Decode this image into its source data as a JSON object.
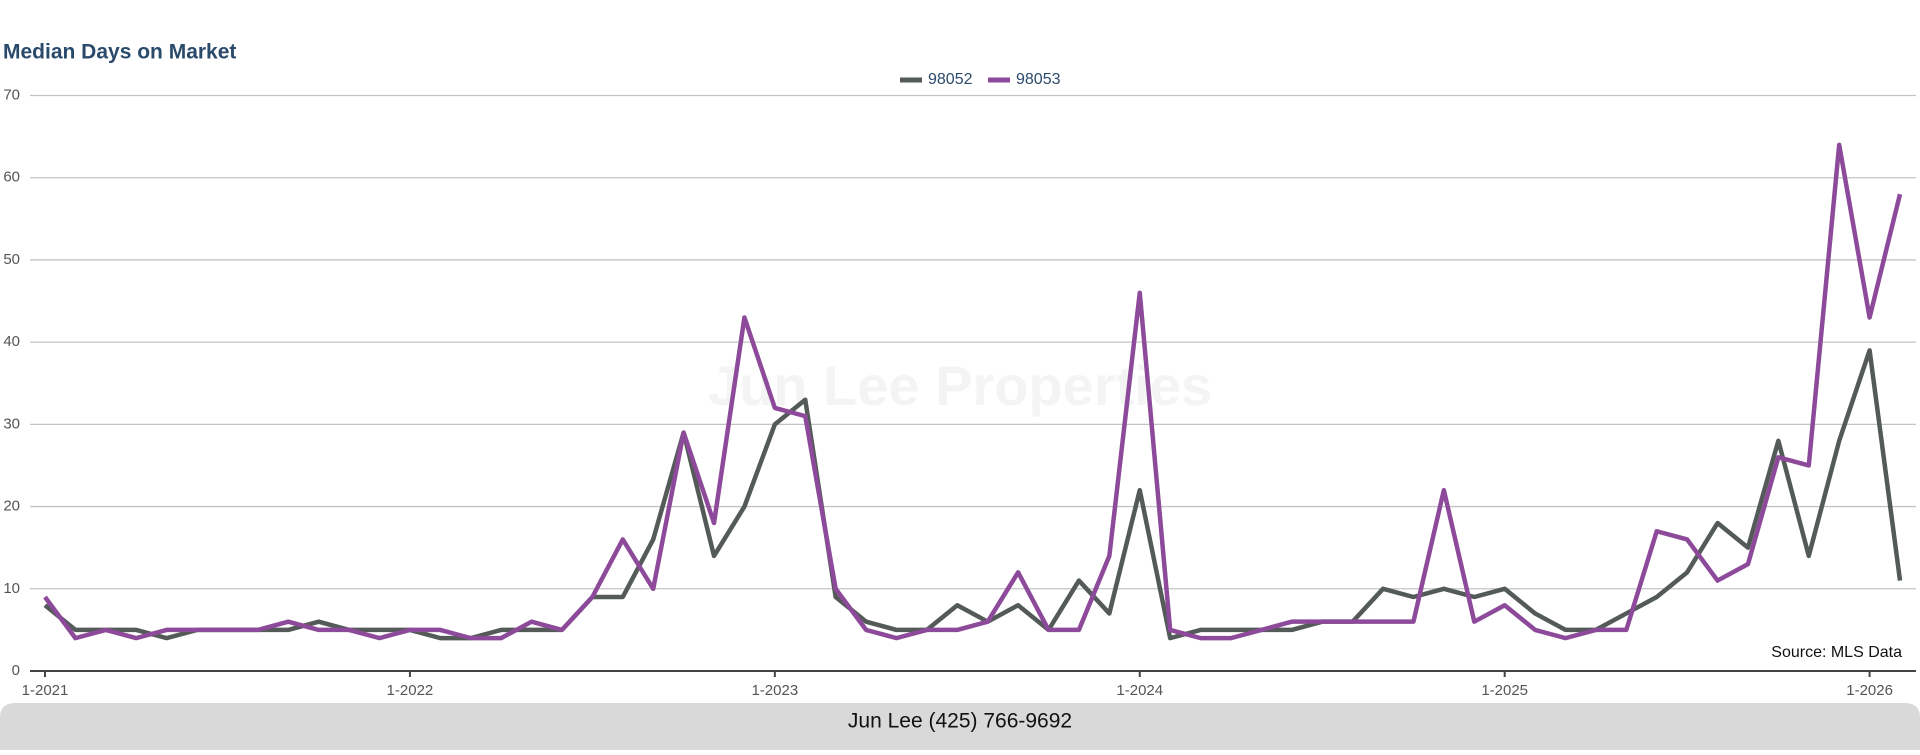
{
  "chart_data": {
    "type": "line",
    "title": "Median Days on Market",
    "categories": [
      "1-2021",
      null,
      null,
      null,
      null,
      null,
      null,
      null,
      null,
      null,
      null,
      null,
      "1-2022",
      null,
      null,
      null,
      null,
      null,
      null,
      null,
      null,
      null,
      null,
      null,
      "1-2023",
      null,
      null,
      null,
      null,
      null,
      null,
      null,
      null,
      null,
      null,
      null,
      "1-2024",
      null,
      null,
      null,
      null,
      null,
      null,
      null,
      null,
      null,
      null,
      null,
      "1-2025",
      null,
      null,
      null,
      null,
      null,
      null,
      null,
      null,
      null,
      null,
      null,
      "1-2026",
      null
    ],
    "series": [
      {
        "name": "98052",
        "color": "#535a58",
        "values": [
          8,
          5,
          5,
          5,
          4,
          5,
          5,
          5,
          5,
          6,
          5,
          5,
          5,
          4,
          4,
          5,
          5,
          5,
          9,
          9,
          16,
          29,
          14,
          20,
          30,
          33,
          9,
          6,
          5,
          5,
          8,
          6,
          8,
          5,
          11,
          7,
          22,
          4,
          5,
          5,
          5,
          5,
          6,
          6,
          10,
          9,
          10,
          9,
          10,
          7,
          5,
          5,
          7,
          9,
          12,
          18,
          15,
          28,
          14,
          28,
          39,
          11
        ]
      },
      {
        "name": "98053",
        "color": "#8e4a9a",
        "values": [
          9,
          4,
          5,
          4,
          5,
          5,
          5,
          5,
          6,
          5,
          5,
          4,
          5,
          5,
          4,
          4,
          6,
          5,
          9,
          16,
          10,
          29,
          18,
          43,
          32,
          31,
          10,
          5,
          4,
          5,
          5,
          6,
          12,
          5,
          5,
          14,
          46,
          5,
          4,
          4,
          5,
          6,
          6,
          6,
          6,
          6,
          22,
          6,
          8,
          5,
          4,
          5,
          5,
          17,
          16,
          11,
          13,
          26,
          25,
          64,
          43,
          58
        ]
      }
    ],
    "ylim": [
      0,
      70
    ],
    "yticks": [
      0,
      10,
      20,
      30,
      40,
      50,
      60,
      70
    ],
    "grid": true,
    "legend": "top",
    "source": "Source: MLS Data",
    "watermark": "Jun Lee Properties",
    "footer": "Jun Lee (425) 766-9692"
  }
}
